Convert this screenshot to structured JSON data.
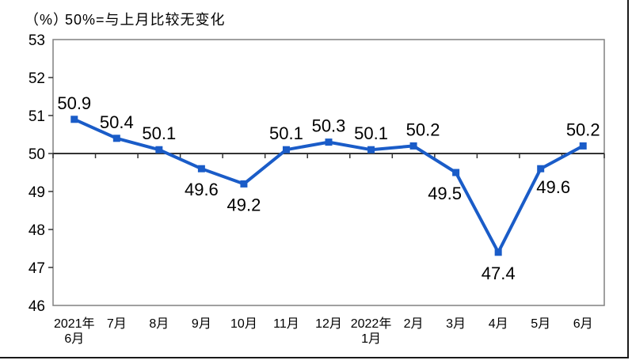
{
  "header": {
    "unit_label": "（%）",
    "subtitle": "50%=与上月比较无变化"
  },
  "chart_data": {
    "type": "line",
    "title": "",
    "xlabel": "",
    "ylabel": "（%）",
    "ylim": [
      46,
      53
    ],
    "y_ticks": [
      46,
      47,
      48,
      49,
      50,
      51,
      52,
      53
    ],
    "reference_line": 50,
    "grid": false,
    "legend": "none",
    "marker": "square",
    "series_color": "#1a5cc8",
    "axis_color": "#333333",
    "plot_border_color": "#808080",
    "categories": [
      [
        "2021年",
        "6月"
      ],
      [
        "7月"
      ],
      [
        "8月"
      ],
      [
        "9月"
      ],
      [
        "10月"
      ],
      [
        "11月"
      ],
      [
        "12月"
      ],
      [
        "2022年",
        "1月"
      ],
      [
        "2月"
      ],
      [
        "3月"
      ],
      [
        "4月"
      ],
      [
        "5月"
      ],
      [
        "6月"
      ]
    ],
    "values": [
      50.9,
      50.4,
      50.1,
      49.6,
      49.2,
      50.1,
      50.3,
      50.1,
      50.2,
      49.5,
      47.4,
      49.6,
      50.2
    ],
    "data_labels": [
      "50.9",
      "50.4",
      "50.1",
      "49.6",
      "49.2",
      "50.1",
      "50.3",
      "50.1",
      "50.2",
      "49.5",
      "47.4",
      "49.6",
      "50.2"
    ],
    "label_positions": [
      "above",
      "above",
      "above",
      "below",
      "below",
      "above",
      "above",
      "above",
      "above-right",
      "below-left",
      "below",
      "below-right",
      "above"
    ]
  }
}
